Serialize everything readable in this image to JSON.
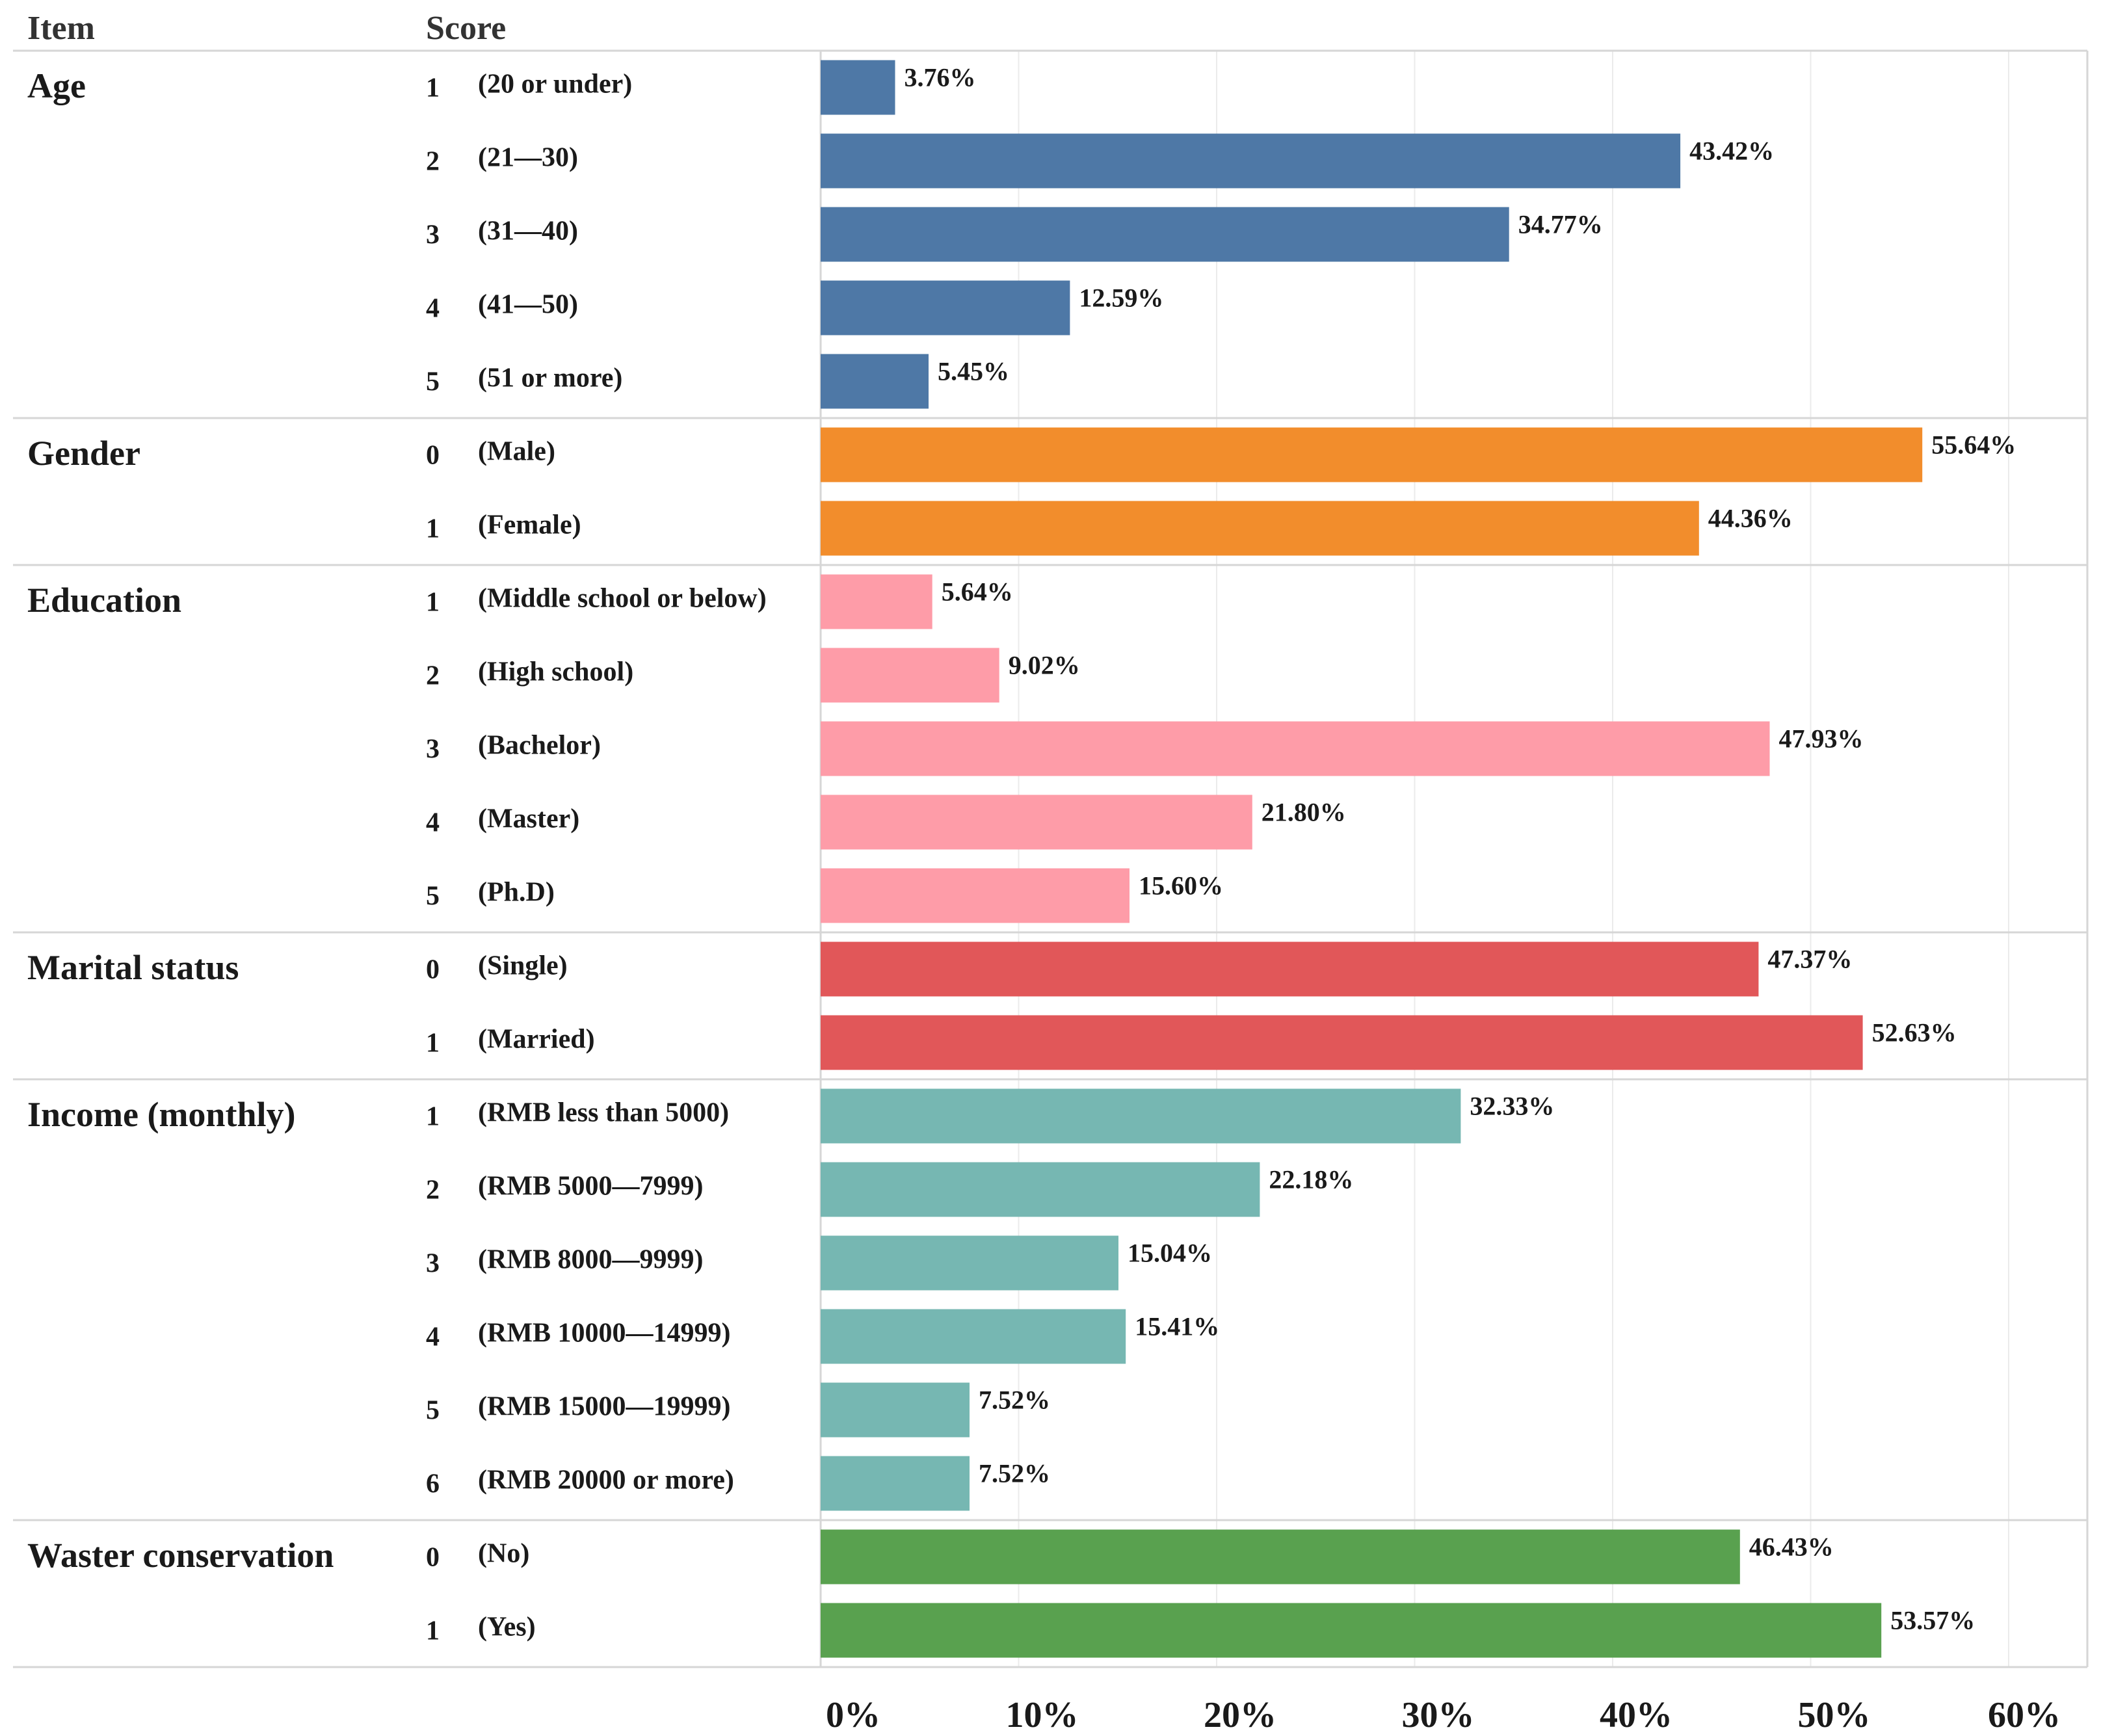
{
  "header": {
    "item": "Item",
    "score": "Score"
  },
  "chart_data": {
    "type": "bar",
    "orientation": "horizontal",
    "xlim": [
      0,
      60
    ],
    "x_ticks": [
      "0%",
      "10%",
      "20%",
      "30%",
      "40%",
      "50%",
      "60%"
    ],
    "grid": true,
    "groups": [
      {
        "name": "Age",
        "color": "#4e78a6",
        "rows": [
          {
            "code": "1",
            "label": "(20 or under)",
            "value": 3.76,
            "value_label": "3.76%"
          },
          {
            "code": "2",
            "label": "(21—30)",
            "value": 43.42,
            "value_label": "43.42%"
          },
          {
            "code": "3",
            "label": "(31—40)",
            "value": 34.77,
            "value_label": "34.77%"
          },
          {
            "code": "4",
            "label": "(41—50)",
            "value": 12.59,
            "value_label": "12.59%"
          },
          {
            "code": "5",
            "label": "(51 or more)",
            "value": 5.45,
            "value_label": "5.45%"
          }
        ]
      },
      {
        "name": "Gender",
        "color": "#f28d2c",
        "rows": [
          {
            "code": "0",
            "label": "(Male)",
            "value": 55.64,
            "value_label": "55.64%"
          },
          {
            "code": "1",
            "label": "(Female)",
            "value": 44.36,
            "value_label": "44.36%"
          }
        ]
      },
      {
        "name": "Education",
        "color": "#fe9ca8",
        "rows": [
          {
            "code": "1",
            "label": "(Middle school or below)",
            "value": 5.64,
            "value_label": "5.64%"
          },
          {
            "code": "2",
            "label": "(High school)",
            "value": 9.02,
            "value_label": "9.02%"
          },
          {
            "code": "3",
            "label": "(Bachelor)",
            "value": 47.93,
            "value_label": "47.93%"
          },
          {
            "code": "4",
            "label": "(Master)",
            "value": 21.8,
            "value_label": "21.80%"
          },
          {
            "code": "5",
            "label": "(Ph.D)",
            "value": 15.6,
            "value_label": "15.60%"
          }
        ]
      },
      {
        "name": "Marital status",
        "color": "#e15759",
        "rows": [
          {
            "code": "0",
            "label": "(Single)",
            "value": 47.37,
            "value_label": "47.37%"
          },
          {
            "code": "1",
            "label": "(Married)",
            "value": 52.63,
            "value_label": "52.63%"
          }
        ]
      },
      {
        "name": "Income (monthly)",
        "color": "#76b7b2",
        "rows": [
          {
            "code": "1",
            "label": "(RMB  less than 5000)",
            "value": 32.33,
            "value_label": "32.33%"
          },
          {
            "code": "2",
            "label": "(RMB 5000—7999)",
            "value": 22.18,
            "value_label": "22.18%"
          },
          {
            "code": "3",
            "label": "(RMB 8000—9999)",
            "value": 15.04,
            "value_label": "15.04%"
          },
          {
            "code": "4",
            "label": "(RMB 10000—14999)",
            "value": 15.41,
            "value_label": "15.41%"
          },
          {
            "code": "5",
            "label": "(RMB 15000—19999)",
            "value": 7.52,
            "value_label": "7.52%"
          },
          {
            "code": "6",
            "label": "(RMB 20000 or more)",
            "value": 7.52,
            "value_label": "7.52%"
          }
        ]
      },
      {
        "name": "Waster conservation",
        "color": "#59a14f",
        "rows": [
          {
            "code": "0",
            "label": "(No)",
            "value": 46.43,
            "value_label": "46.43%"
          },
          {
            "code": "1",
            "label": "(Yes)",
            "value": 53.57,
            "value_label": "53.57%"
          }
        ]
      }
    ]
  }
}
